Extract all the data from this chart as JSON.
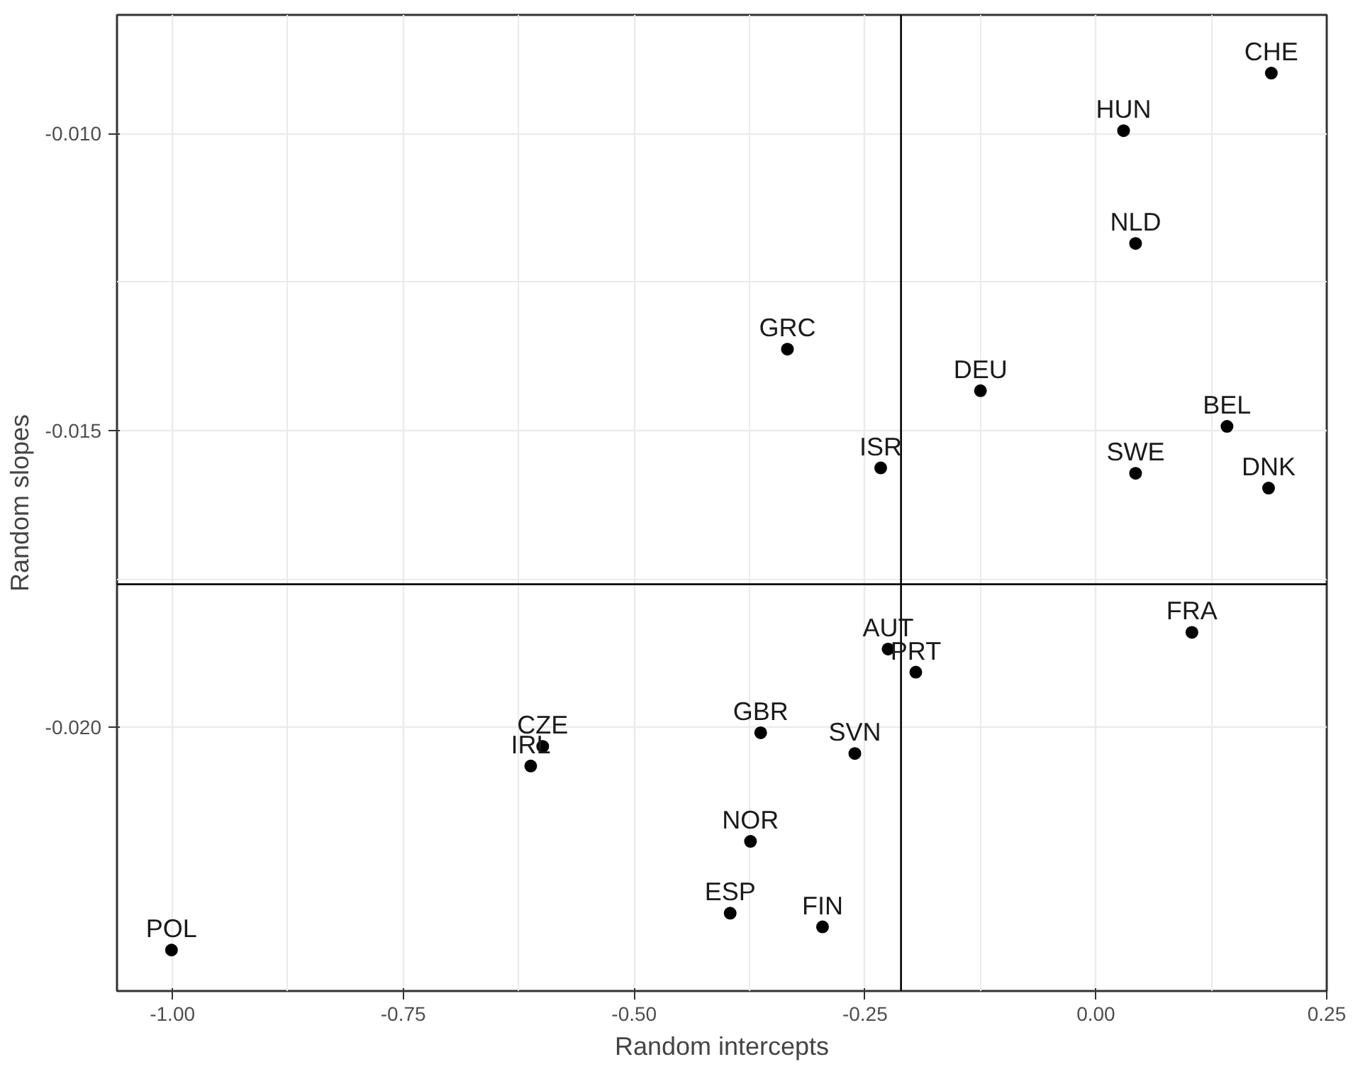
{
  "chart_data": {
    "type": "scatter",
    "xlabel": "Random intercepts",
    "ylabel": "Random slopes",
    "xlim": [
      -1.06,
      0.25
    ],
    "ylim": [
      -0.02444,
      -0.008
    ],
    "xticks": [
      {
        "value": -1.0,
        "label": "-1.00"
      },
      {
        "value": -0.75,
        "label": "-0.75"
      },
      {
        "value": -0.5,
        "label": "-0.50"
      },
      {
        "value": -0.25,
        "label": "-0.25"
      },
      {
        "value": 0.0,
        "label": "0.00"
      },
      {
        "value": 0.25,
        "label": "0.25"
      }
    ],
    "yticks": [
      {
        "value": -0.02,
        "label": "-0.020"
      },
      {
        "value": -0.015,
        "label": "-0.015"
      },
      {
        "value": -0.01,
        "label": "-0.010"
      }
    ],
    "grid": true,
    "marker": "circle",
    "series": [
      {
        "color": "#000000",
        "x": [
          0.19,
          0.03,
          0.043,
          -0.334,
          -0.125,
          0.142,
          -0.233,
          0.043,
          0.187,
          0.104,
          -0.225,
          -0.195,
          -0.599,
          -0.612,
          -0.363,
          -0.261,
          -0.374,
          -0.396,
          -0.296,
          -1.001
        ],
        "values": [
          -0.00898,
          -0.00995,
          -0.01185,
          -0.01363,
          -0.01433,
          -0.01493,
          -0.01563,
          -0.01572,
          -0.01597,
          -0.0184,
          -0.01868,
          -0.01907,
          -0.02032,
          -0.02065,
          -0.02009,
          -0.02044,
          -0.02192,
          -0.02313,
          -0.02336,
          -0.02375
        ]
      }
    ],
    "ref_lines": [
      {
        "axis": "x",
        "value": -0.211,
        "color": "#000000"
      },
      {
        "axis": "y",
        "value": -0.01759,
        "color": "#000000"
      }
    ],
    "annotations": [
      {
        "text": "CHE",
        "x": 0.19,
        "y": -0.00898
      },
      {
        "text": "HUN",
        "x": 0.03,
        "y": -0.00995
      },
      {
        "text": "NLD",
        "x": 0.043,
        "y": -0.01185
      },
      {
        "text": "GRC",
        "x": -0.334,
        "y": -0.01363
      },
      {
        "text": "DEU",
        "x": -0.125,
        "y": -0.01433
      },
      {
        "text": "BEL",
        "x": 0.142,
        "y": -0.01493
      },
      {
        "text": "ISR",
        "x": -0.233,
        "y": -0.01563
      },
      {
        "text": "SWE",
        "x": 0.043,
        "y": -0.01572
      },
      {
        "text": "DNK",
        "x": 0.187,
        "y": -0.01597
      },
      {
        "text": "FRA",
        "x": 0.104,
        "y": -0.0184
      },
      {
        "text": "AUT",
        "x": -0.225,
        "y": -0.01868
      },
      {
        "text": "PRT",
        "x": -0.195,
        "y": -0.01907
      },
      {
        "text": "CZE",
        "x": -0.599,
        "y": -0.02032
      },
      {
        "text": "IRL",
        "x": -0.612,
        "y": -0.02065
      },
      {
        "text": "GBR",
        "x": -0.363,
        "y": -0.02009
      },
      {
        "text": "SVN",
        "x": -0.261,
        "y": -0.02044
      },
      {
        "text": "NOR",
        "x": -0.374,
        "y": -0.02192
      },
      {
        "text": "ESP",
        "x": -0.396,
        "y": -0.02313
      },
      {
        "text": "FIN",
        "x": -0.296,
        "y": -0.02336
      },
      {
        "text": "POL",
        "x": -1.001,
        "y": -0.02375
      }
    ]
  }
}
